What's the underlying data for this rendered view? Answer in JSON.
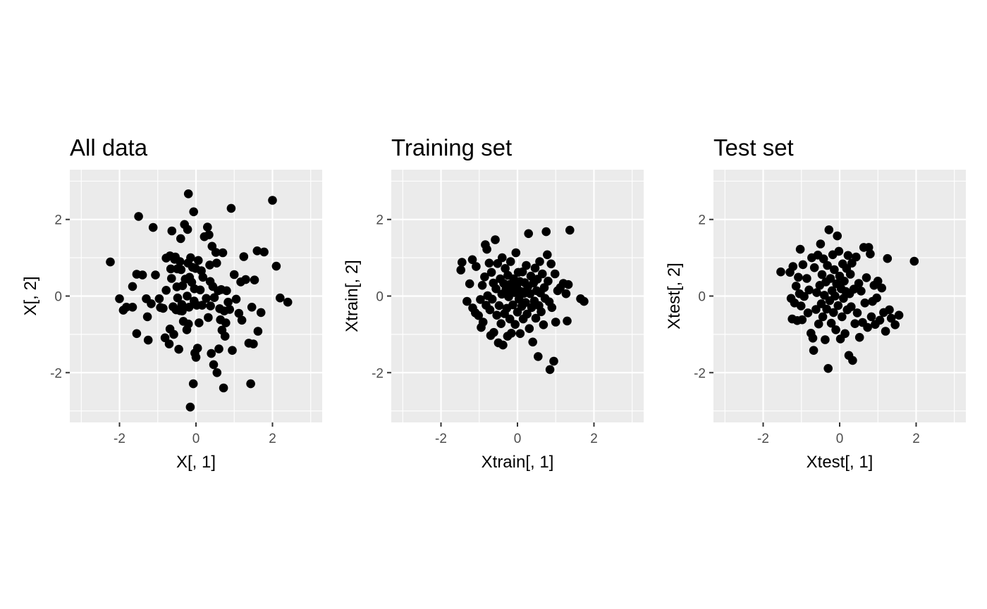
{
  "chart_data": [
    {
      "type": "scatter",
      "title": "All data",
      "xlabel": "X[, 1]",
      "ylabel": "X[, 2]",
      "xlim": [
        -3.3,
        3.3
      ],
      "ylim": [
        -3.3,
        3.3
      ],
      "xticks": [
        -2,
        0,
        2
      ],
      "yticks": [
        -2,
        0,
        2
      ],
      "tick_labels_x": [
        "-2",
        "0",
        "2"
      ],
      "tick_labels_y": [
        "-2",
        "0",
        "2"
      ],
      "grid": true,
      "points": [
        [
          -2.24,
          0.89
        ],
        [
          -2.0,
          -0.07
        ],
        [
          -1.9,
          -0.37
        ],
        [
          -1.82,
          -0.29
        ],
        [
          -1.66,
          0.25
        ],
        [
          -1.66,
          -0.29
        ],
        [
          -1.55,
          0.57
        ],
        [
          -1.55,
          -0.98
        ],
        [
          -1.5,
          2.08
        ],
        [
          -1.4,
          0.55
        ],
        [
          -1.3,
          -0.07
        ],
        [
          -1.27,
          -0.54
        ],
        [
          -1.25,
          -1.15
        ],
        [
          -1.17,
          -0.2
        ],
        [
          -1.12,
          1.79
        ],
        [
          -1.06,
          0.55
        ],
        [
          -0.96,
          -0.07
        ],
        [
          -0.93,
          -0.3
        ],
        [
          -0.86,
          -0.32
        ],
        [
          -0.81,
          -1.09
        ],
        [
          -0.78,
          0.15
        ],
        [
          -0.78,
          0.99
        ],
        [
          -0.7,
          -1.25
        ],
        [
          -0.68,
          1.05
        ],
        [
          -0.68,
          -0.86
        ],
        [
          -0.66,
          0.71
        ],
        [
          -0.64,
          0.46
        ],
        [
          -0.63,
          1.7
        ],
        [
          -0.6,
          -0.28
        ],
        [
          -0.58,
          -1.0
        ],
        [
          -0.56,
          0.96
        ],
        [
          -0.54,
          1.02
        ],
        [
          -0.52,
          -0.36
        ],
        [
          -0.5,
          0.24
        ],
        [
          -0.49,
          0.71
        ],
        [
          -0.48,
          -0.05
        ],
        [
          -0.45,
          -1.39
        ],
        [
          -0.42,
          -0.38
        ],
        [
          -0.42,
          0.9
        ],
        [
          -0.4,
          1.5
        ],
        [
          -0.39,
          0.69
        ],
        [
          -0.37,
          -0.22
        ],
        [
          -0.36,
          -0.39
        ],
        [
          -0.35,
          0.27
        ],
        [
          -0.33,
          -0.66
        ],
        [
          -0.3,
          1.87
        ],
        [
          -0.28,
          0.44
        ],
        [
          -0.24,
          -0.88
        ],
        [
          -0.23,
          0.0
        ],
        [
          -0.22,
          1.74
        ],
        [
          -0.21,
          0.86
        ],
        [
          -0.2,
          -0.73
        ],
        [
          -0.2,
          2.67
        ],
        [
          -0.18,
          -0.29
        ],
        [
          -0.17,
          0.49
        ],
        [
          -0.15,
          -2.9
        ],
        [
          -0.14,
          1.0
        ],
        [
          -0.11,
          0.36
        ],
        [
          -0.09,
          0.75
        ],
        [
          -0.07,
          -2.29
        ],
        [
          -0.06,
          2.2
        ],
        [
          -0.05,
          -0.13
        ],
        [
          -0.04,
          0.19
        ],
        [
          -0.03,
          -1.49
        ],
        [
          -0.01,
          0.72
        ],
        [
          0.0,
          -1.6
        ],
        [
          0.02,
          -0.24
        ],
        [
          0.04,
          -1.36
        ],
        [
          0.06,
          0.93
        ],
        [
          0.08,
          -0.7
        ],
        [
          0.11,
          0.16
        ],
        [
          0.14,
          0.66
        ],
        [
          0.16,
          -0.24
        ],
        [
          0.18,
          0.49
        ],
        [
          0.22,
          1.55
        ],
        [
          0.27,
          -0.06
        ],
        [
          0.3,
          1.8
        ],
        [
          0.32,
          -0.56
        ],
        [
          0.34,
          1.6
        ],
        [
          0.36,
          0.81
        ],
        [
          0.37,
          0.38
        ],
        [
          0.38,
          -0.26
        ],
        [
          0.4,
          -1.5
        ],
        [
          0.42,
          1.3
        ],
        [
          0.44,
          0.25
        ],
        [
          0.46,
          -1.79
        ],
        [
          0.48,
          -0.04
        ],
        [
          0.52,
          1.14
        ],
        [
          0.54,
          0.86
        ],
        [
          0.55,
          -2.0
        ],
        [
          0.58,
          0.14
        ],
        [
          0.6,
          -1.38
        ],
        [
          0.62,
          -0.33
        ],
        [
          0.64,
          -0.62
        ],
        [
          0.66,
          0.17
        ],
        [
          0.68,
          -0.89
        ],
        [
          0.7,
          1.13
        ],
        [
          0.72,
          -2.4
        ],
        [
          0.74,
          -0.39
        ],
        [
          0.76,
          -1.05
        ],
        [
          0.78,
          -0.7
        ],
        [
          0.8,
          0.14
        ],
        [
          0.84,
          -0.16
        ],
        [
          0.88,
          -0.35
        ],
        [
          0.92,
          2.29
        ],
        [
          0.95,
          -1.42
        ],
        [
          1.0,
          0.56
        ],
        [
          1.05,
          -0.08
        ],
        [
          1.12,
          -0.45
        ],
        [
          1.17,
          0.37
        ],
        [
          1.2,
          -0.63
        ],
        [
          1.25,
          1.03
        ],
        [
          1.3,
          0.43
        ],
        [
          1.38,
          -1.23
        ],
        [
          1.43,
          -2.29
        ],
        [
          1.46,
          -0.29
        ],
        [
          1.5,
          -1.25
        ],
        [
          1.53,
          0.42
        ],
        [
          1.6,
          1.18
        ],
        [
          1.62,
          -0.92
        ],
        [
          1.7,
          -0.43
        ],
        [
          1.78,
          1.15
        ],
        [
          2.0,
          2.5
        ],
        [
          2.1,
          0.78
        ],
        [
          2.2,
          -0.05
        ],
        [
          2.4,
          -0.16
        ]
      ]
    },
    {
      "type": "scatter",
      "title": "Training set",
      "xlabel": "Xtrain[, 1]",
      "ylabel": "Xtrain[, 2]",
      "xlim": [
        -3.3,
        3.3
      ],
      "ylim": [
        -3.3,
        3.3
      ],
      "xticks": [
        -2,
        0,
        2
      ],
      "yticks": [
        -2,
        0,
        2
      ],
      "tick_labels_x": [
        "-2",
        "0",
        "2"
      ],
      "tick_labels_y": [
        "-2",
        "0",
        "2"
      ],
      "grid": true,
      "points": [
        [
          -1.48,
          0.68
        ],
        [
          -1.45,
          0.88
        ],
        [
          -1.32,
          -0.14
        ],
        [
          -1.25,
          0.32
        ],
        [
          -1.18,
          0.95
        ],
        [
          -1.17,
          -0.31
        ],
        [
          -1.1,
          -0.44
        ],
        [
          -1.08,
          0.77
        ],
        [
          -1.02,
          -0.51
        ],
        [
          -0.97,
          -0.09
        ],
        [
          -0.95,
          -0.82
        ],
        [
          -0.92,
          0.28
        ],
        [
          -0.9,
          -0.68
        ],
        [
          -0.86,
          0.5
        ],
        [
          -0.84,
          1.34
        ],
        [
          -0.82,
          -0.24
        ],
        [
          -0.8,
          1.22
        ],
        [
          -0.78,
          0.01
        ],
        [
          -0.74,
          0.86
        ],
        [
          -0.72,
          -0.36
        ],
        [
          -0.7,
          -1.03
        ],
        [
          -0.68,
          0.62
        ],
        [
          -0.66,
          -0.08
        ],
        [
          -0.63,
          0.34
        ],
        [
          -0.62,
          -0.95
        ],
        [
          -0.58,
          1.47
        ],
        [
          -0.56,
          0.19
        ],
        [
          -0.54,
          -0.5
        ],
        [
          -0.52,
          0.85
        ],
        [
          -0.5,
          -1.22
        ],
        [
          -0.48,
          -0.25
        ],
        [
          -0.45,
          0.45
        ],
        [
          -0.43,
          -0.72
        ],
        [
          -0.41,
          0.05
        ],
        [
          -0.4,
          1.0
        ],
        [
          -0.38,
          -1.28
        ],
        [
          -0.36,
          0.33
        ],
        [
          -0.34,
          -0.46
        ],
        [
          -0.32,
          0.72
        ],
        [
          -0.3,
          0.18
        ],
        [
          -0.28,
          -0.32
        ],
        [
          -0.26,
          -1.05
        ],
        [
          -0.25,
          0.54
        ],
        [
          -0.23,
          -0.02
        ],
        [
          -0.21,
          0.3
        ],
        [
          -0.2,
          -0.6
        ],
        [
          -0.18,
          0.9
        ],
        [
          -0.16,
          -0.97
        ],
        [
          -0.14,
          0.12
        ],
        [
          -0.12,
          -0.23
        ],
        [
          -0.1,
          0.45
        ],
        [
          -0.08,
          0.09
        ],
        [
          -0.06,
          -0.74
        ],
        [
          -0.04,
          1.13
        ],
        [
          -0.02,
          0.26
        ],
        [
          0.0,
          -0.42
        ],
        [
          0.02,
          0.62
        ],
        [
          0.04,
          -0.08
        ],
        [
          0.06,
          0.38
        ],
        [
          0.07,
          -0.98
        ],
        [
          0.09,
          0.12
        ],
        [
          0.11,
          -0.27
        ],
        [
          0.13,
          0.63
        ],
        [
          0.15,
          -0.6
        ],
        [
          0.17,
          0.07
        ],
        [
          0.19,
          0.35
        ],
        [
          0.21,
          -0.17
        ],
        [
          0.23,
          0.8
        ],
        [
          0.25,
          -0.47
        ],
        [
          0.27,
          0.24
        ],
        [
          0.29,
          1.63
        ],
        [
          0.31,
          -0.85
        ],
        [
          0.33,
          0.06
        ],
        [
          0.35,
          0.52
        ],
        [
          0.37,
          -0.3
        ],
        [
          0.4,
          -1.2
        ],
        [
          0.42,
          0.34
        ],
        [
          0.44,
          -0.13
        ],
        [
          0.46,
          0.73
        ],
        [
          0.48,
          -0.58
        ],
        [
          0.5,
          0.14
        ],
        [
          0.52,
          0.44
        ],
        [
          0.54,
          -1.58
        ],
        [
          0.56,
          -0.25
        ],
        [
          0.58,
          0.9
        ],
        [
          0.6,
          0.08
        ],
        [
          0.62,
          -0.41
        ],
        [
          0.65,
          0.58
        ],
        [
          0.68,
          -0.75
        ],
        [
          0.7,
          0.22
        ],
        [
          0.72,
          -0.06
        ],
        [
          0.75,
          1.68
        ],
        [
          0.78,
          1.08
        ],
        [
          0.8,
          0.39
        ],
        [
          0.83,
          -0.15
        ],
        [
          0.85,
          -1.92
        ],
        [
          0.88,
          0.84
        ],
        [
          0.9,
          -0.3
        ],
        [
          0.95,
          -1.7
        ],
        [
          0.98,
          0.58
        ],
        [
          1.0,
          -0.68
        ],
        [
          1.05,
          0.14
        ],
        [
          1.12,
          0.22
        ],
        [
          1.2,
          0.33
        ],
        [
          1.27,
          0.06
        ],
        [
          1.3,
          -0.65
        ],
        [
          1.33,
          0.3
        ],
        [
          1.37,
          1.72
        ],
        [
          1.65,
          -0.07
        ],
        [
          1.74,
          -0.14
        ]
      ]
    },
    {
      "type": "scatter",
      "title": "Test set",
      "xlabel": "Xtest[, 1]",
      "ylabel": "Xtest[, 2]",
      "xlim": [
        -3.3,
        3.3
      ],
      "ylim": [
        -3.3,
        3.3
      ],
      "xticks": [
        -2,
        0,
        2
      ],
      "yticks": [
        -2,
        0,
        2
      ],
      "tick_labels_x": [
        "-2",
        "0",
        "2"
      ],
      "tick_labels_y": [
        "-2",
        "0",
        "2"
      ],
      "grid": true,
      "points": [
        [
          -1.54,
          0.63
        ],
        [
          -1.3,
          0.62
        ],
        [
          -1.27,
          -0.06
        ],
        [
          -1.24,
          -0.6
        ],
        [
          -1.22,
          0.77
        ],
        [
          -1.18,
          -0.18
        ],
        [
          -1.14,
          0.26
        ],
        [
          -1.11,
          -0.64
        ],
        [
          -1.08,
          0.49
        ],
        [
          -1.05,
          0.06
        ],
        [
          -1.03,
          1.22
        ],
        [
          -1.01,
          -0.26
        ],
        [
          -0.98,
          -0.62
        ],
        [
          -0.96,
          0.82
        ],
        [
          -0.93,
          -0.01
        ],
        [
          -0.86,
          0.46
        ],
        [
          -0.83,
          -0.44
        ],
        [
          -0.8,
          0.16
        ],
        [
          -0.75,
          -0.97
        ],
        [
          -0.73,
          1.0
        ],
        [
          -0.7,
          -1.1
        ],
        [
          -0.68,
          -1.42
        ],
        [
          -0.66,
          0.74
        ],
        [
          -0.62,
          -0.35
        ],
        [
          -0.6,
          0.09
        ],
        [
          -0.57,
          1.07
        ],
        [
          -0.55,
          -0.73
        ],
        [
          -0.52,
          0.28
        ],
        [
          -0.5,
          1.36
        ],
        [
          -0.48,
          -0.2
        ],
        [
          -0.46,
          0.56
        ],
        [
          -0.44,
          -0.54
        ],
        [
          -0.42,
          0.97
        ],
        [
          -0.4,
          0.02
        ],
        [
          -0.38,
          -1.14
        ],
        [
          -0.36,
          0.37
        ],
        [
          -0.34,
          -0.34
        ],
        [
          -0.32,
          0.8
        ],
        [
          -0.3,
          -1.89
        ],
        [
          -0.28,
          1.73
        ],
        [
          -0.26,
          -0.12
        ],
        [
          -0.24,
          0.46
        ],
        [
          -0.22,
          -0.71
        ],
        [
          -0.2,
          0.14
        ],
        [
          -0.18,
          1.08
        ],
        [
          -0.16,
          -0.43
        ],
        [
          -0.14,
          0.69
        ],
        [
          -0.12,
          0.0
        ],
        [
          -0.1,
          -0.88
        ],
        [
          -0.08,
          0.32
        ],
        [
          -0.06,
          1.57
        ],
        [
          -0.04,
          -0.25
        ],
        [
          -0.02,
          1.17
        ],
        [
          0.0,
          0.52
        ],
        [
          0.02,
          -1.12
        ],
        [
          0.04,
          0.19
        ],
        [
          0.06,
          -0.54
        ],
        [
          0.08,
          0.84
        ],
        [
          0.1,
          -0.06
        ],
        [
          0.12,
          0.39
        ],
        [
          0.14,
          -0.98
        ],
        [
          0.16,
          0.12
        ],
        [
          0.18,
          0.72
        ],
        [
          0.2,
          -0.36
        ],
        [
          0.22,
          1.06
        ],
        [
          0.24,
          -1.55
        ],
        [
          0.26,
          0.06
        ],
        [
          0.28,
          0.57
        ],
        [
          0.3,
          -0.28
        ],
        [
          0.32,
          0.86
        ],
        [
          0.34,
          -1.68
        ],
        [
          0.37,
          0.18
        ],
        [
          0.4,
          -0.72
        ],
        [
          0.43,
          1.02
        ],
        [
          0.46,
          -0.44
        ],
        [
          0.5,
          0.33
        ],
        [
          0.52,
          -1.08
        ],
        [
          0.56,
          0.13
        ],
        [
          0.6,
          -0.69
        ],
        [
          0.63,
          1.27
        ],
        [
          0.66,
          -0.18
        ],
        [
          0.7,
          0.48
        ],
        [
          0.73,
          -0.82
        ],
        [
          0.76,
          1.27
        ],
        [
          0.8,
          1.1
        ],
        [
          0.83,
          -0.54
        ],
        [
          0.86,
          -0.14
        ],
        [
          0.9,
          0.28
        ],
        [
          0.93,
          -0.74
        ],
        [
          0.97,
          -0.05
        ],
        [
          1.0,
          0.39
        ],
        [
          1.05,
          -0.63
        ],
        [
          1.1,
          0.21
        ],
        [
          1.15,
          -0.43
        ],
        [
          1.2,
          -0.92
        ],
        [
          1.25,
          0.98
        ],
        [
          1.3,
          -0.36
        ],
        [
          1.35,
          -0.58
        ],
        [
          1.45,
          -0.75
        ],
        [
          1.55,
          -0.5
        ],
        [
          1.95,
          0.91
        ]
      ]
    }
  ]
}
